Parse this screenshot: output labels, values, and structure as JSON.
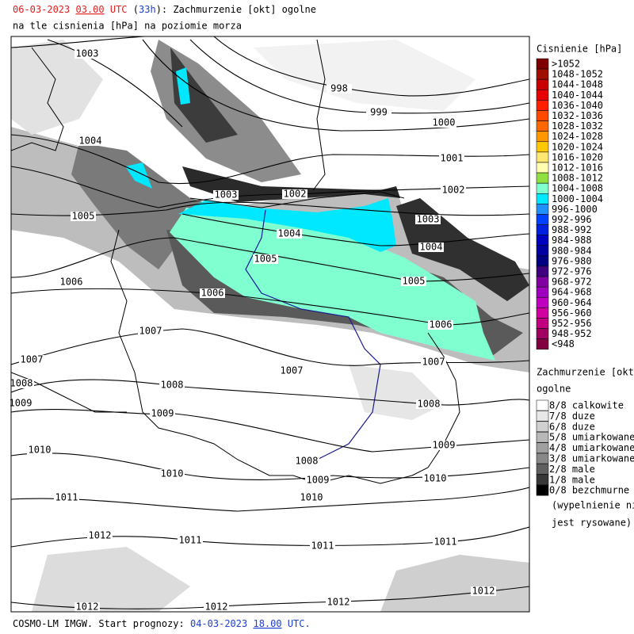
{
  "header": {
    "date": "06-03-2023",
    "hour": "03.00",
    "utc": "UTC",
    "lead_open": "(",
    "lead": "33h",
    "lead_close": "):",
    "field": "Zachmurzenie [okt] ogolne",
    "subtitle": "na tle cisnienia [hPa] na poziomie morza"
  },
  "pressure_legend": {
    "title": "Cisnienie [hPa]",
    "items": [
      {
        "label": ">1052",
        "color": "#7f0000"
      },
      {
        "label": "1048-1052",
        "color": "#a01000"
      },
      {
        "label": "1044-1048",
        "color": "#c80000"
      },
      {
        "label": "1040-1044",
        "color": "#e80000"
      },
      {
        "label": "1036-1040",
        "color": "#ff2000"
      },
      {
        "label": "1032-1036",
        "color": "#ff4800"
      },
      {
        "label": "1028-1032",
        "color": "#ff6800"
      },
      {
        "label": "1024-1028",
        "color": "#ff9800"
      },
      {
        "label": "1020-1024",
        "color": "#ffc800"
      },
      {
        "label": "1016-1020",
        "color": "#ffe870"
      },
      {
        "label": "1012-1016",
        "color": "#ffffb0"
      },
      {
        "label": "1008-1012",
        "color": "#90e040"
      },
      {
        "label": "1004-1008",
        "color": "#80ffd0"
      },
      {
        "label": "1000-1004",
        "color": "#00e8ff"
      },
      {
        "label": "996-1000",
        "color": "#2090ff"
      },
      {
        "label": "992-996",
        "color": "#0040ff"
      },
      {
        "label": "988-992",
        "color": "#0020e0"
      },
      {
        "label": "984-988",
        "color": "#0000c0"
      },
      {
        "label": "980-984",
        "color": "#0000a0"
      },
      {
        "label": "976-980",
        "color": "#000080"
      },
      {
        "label": "972-976",
        "color": "#400080"
      },
      {
        "label": "968-972",
        "color": "#8000a0"
      },
      {
        "label": "964-968",
        "color": "#a000c0"
      },
      {
        "label": "960-964",
        "color": "#c000c0"
      },
      {
        "label": "956-960",
        "color": "#d000a0"
      },
      {
        "label": "952-956",
        "color": "#c00080"
      },
      {
        "label": "948-952",
        "color": "#a00060"
      },
      {
        "label": "<948",
        "color": "#800040"
      }
    ]
  },
  "cloud_legend": {
    "title": "Zachmurzenie [okt]",
    "title2": "ogolne",
    "items": [
      {
        "label": "8/8 calkowite",
        "color": "#ffffff"
      },
      {
        "label": "7/8 duze",
        "color": "#e8e8e8"
      },
      {
        "label": "6/8 duze",
        "color": "#d0d0d0"
      },
      {
        "label": "5/8 umiarkowane",
        "color": "#b8b8b8"
      },
      {
        "label": "4/8 umiarkowane",
        "color": "#a0a0a0"
      },
      {
        "label": "3/8 umiarkowane",
        "color": "#888888"
      },
      {
        "label": "2/8 male",
        "color": "#606060"
      },
      {
        "label": "1/8 male",
        "color": "#383838"
      },
      {
        "label": "0/8 bezchmurne",
        "color": "#000000"
      }
    ],
    "note1": "(wypelnienie nie",
    "note2": "jest rysowane)"
  },
  "isobar_labels": [
    "1003",
    "998",
    "999",
    "1000",
    "1004",
    "1001",
    "1003",
    "1002",
    "1002",
    "1005",
    "1003",
    "1004",
    "1004",
    "1005",
    "1005",
    "1006",
    "1006",
    "1006",
    "1007",
    "1007",
    "1007",
    "1007",
    "1008",
    "1008",
    "1008",
    "1009",
    "1009",
    "1009",
    "1010",
    "1010",
    "1008",
    "1009",
    "1010",
    "1010",
    "1011",
    "1012",
    "1011",
    "1011",
    "1011",
    "1012",
    "1012",
    "1012",
    "1012"
  ],
  "footer": {
    "model": "COSMO-LM IMGW. Start prognozy:",
    "date": "04-03-2023",
    "hour": "18.00",
    "utc": "UTC."
  }
}
